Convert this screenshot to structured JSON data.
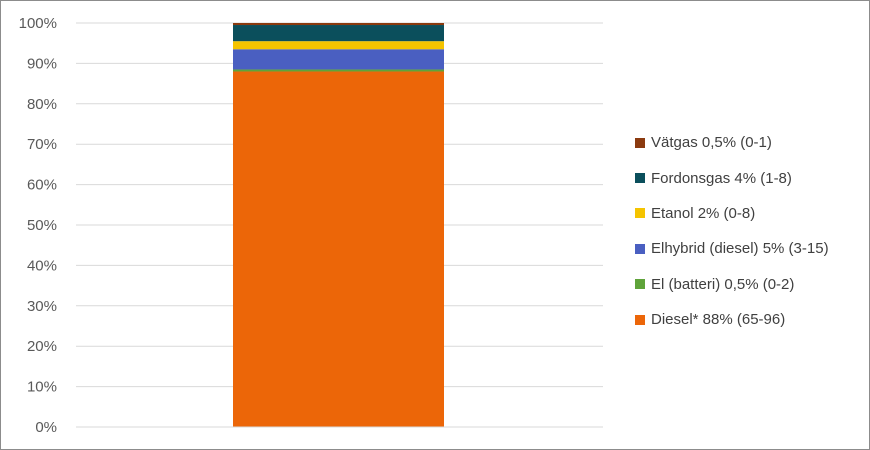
{
  "chart_data": {
    "type": "bar",
    "stacked": true,
    "categories": [
      ""
    ],
    "ylim": [
      0,
      100
    ],
    "yticks": [
      "0%",
      "10%",
      "20%",
      "30%",
      "40%",
      "50%",
      "60%",
      "70%",
      "80%",
      "90%",
      "100%"
    ],
    "grid": true,
    "legend_position": "right",
    "series": [
      {
        "name": "Diesel* 88% (65-96)",
        "values": [
          88
        ],
        "color": "#ec6608"
      },
      {
        "name": "El (batteri) 0,5% (0-2)",
        "values": [
          0.5
        ],
        "color": "#5fa33a"
      },
      {
        "name": "Elhybrid (diesel) 5% (3-15)",
        "values": [
          5
        ],
        "color": "#4a5fc1"
      },
      {
        "name": "Etanol 2% (0-8)",
        "values": [
          2
        ],
        "color": "#f5c400"
      },
      {
        "name": "Fordonsgas 4% (1-8)",
        "values": [
          4
        ],
        "color": "#0b4f5c"
      },
      {
        "name": "Vätgas 0,5% (0-1)",
        "values": [
          0.5
        ],
        "color": "#8b3a0f"
      }
    ]
  }
}
